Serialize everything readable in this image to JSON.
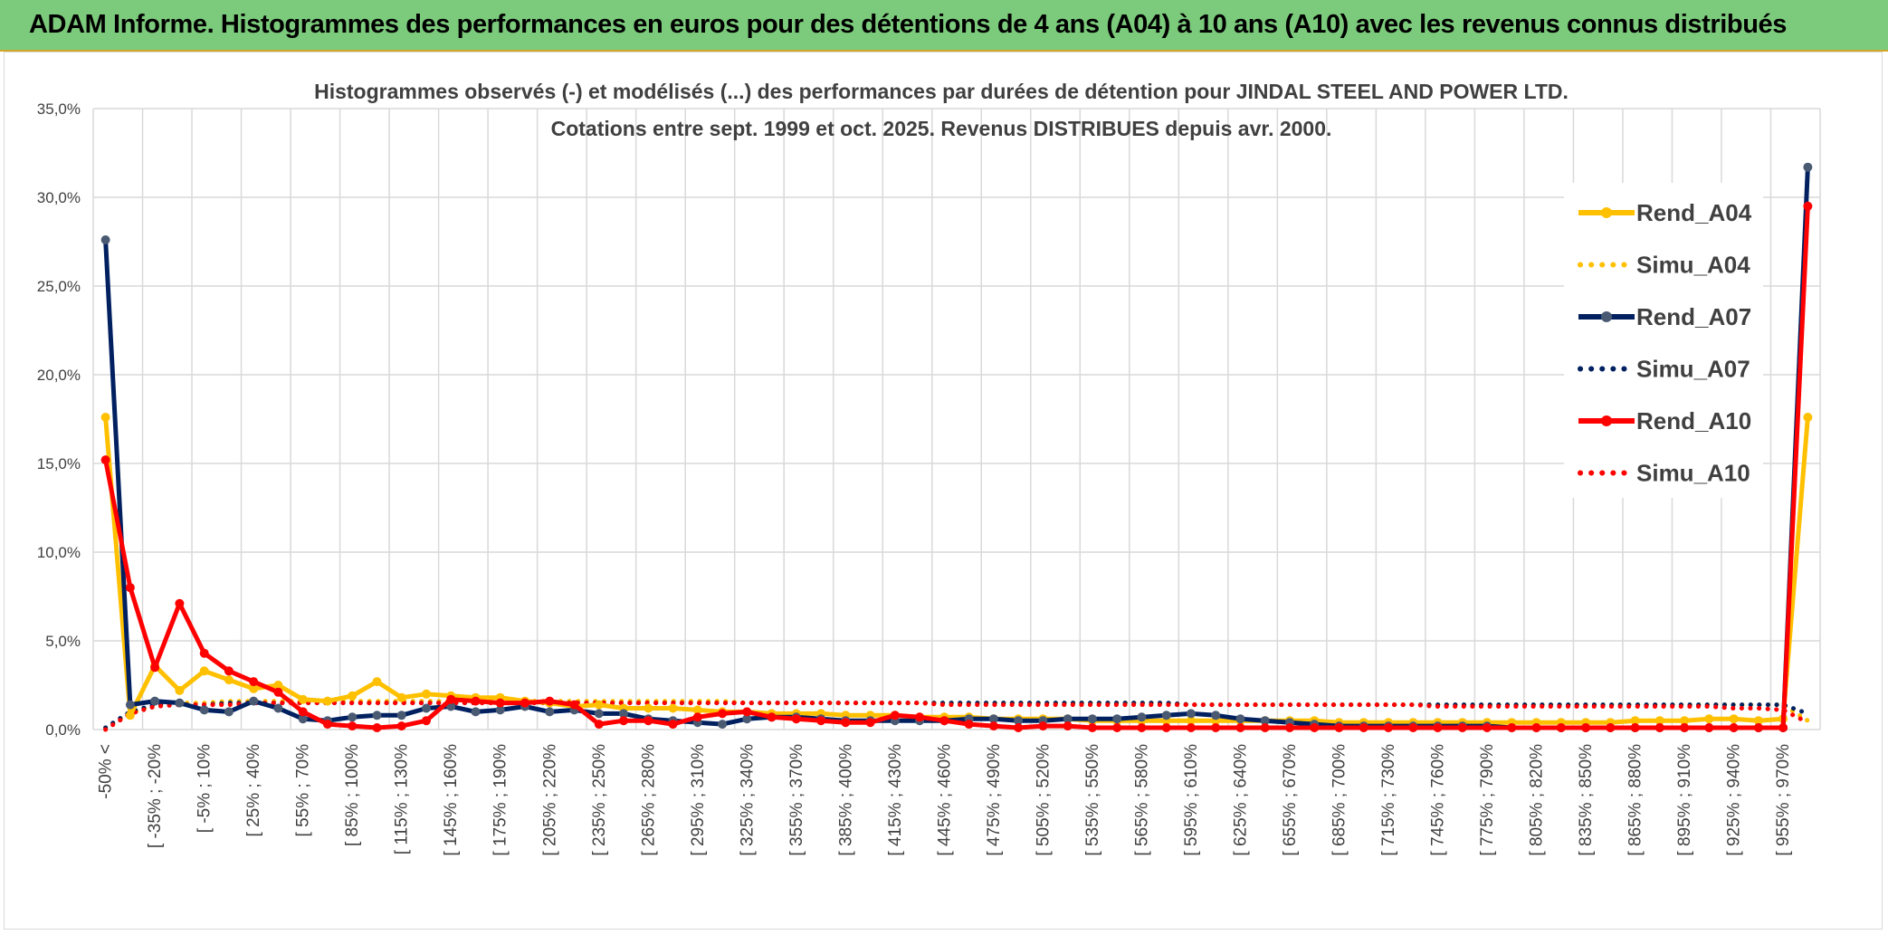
{
  "banner": {
    "title": "ADAM Informe. Histogrammes des performances en euros pour des détentions de 4 ans (A04) à 10 ans (A10) avec les revenus connus distribués"
  },
  "colors": {
    "banner_bg": "#7ccb7c",
    "A04": "#ffc000",
    "A07": "#002060",
    "A07_marker": "#4a5a73",
    "A10": "#ff0000"
  },
  "chart_data": {
    "type": "line",
    "title_lines": [
      "Histogrammes observés (-) et modélisés (...) des performances par durées de détention pour JINDAL STEEL AND POWER LTD.",
      "Cotations entre sept. 1999 et oct. 2025. Revenus DISTRIBUES depuis avr. 2000."
    ],
    "xlabel": "",
    "ylabel": "",
    "ylim": [
      0,
      35
    ],
    "yticks": [
      "0,0%",
      "5,0%",
      "10,0%",
      "15,0%",
      "20,0%",
      "25,0%",
      "30,0%",
      "35,0%"
    ],
    "x_tick_labels": [
      "-50% <",
      "[ -35% ; -20%",
      "[ -5% ; 10%",
      "[ 25% ; 40%",
      "[ 55% ; 70%",
      "[ 85% ; 100%",
      "[ 115% ; 130%",
      "[ 145% ; 160%",
      "[ 175% ; 190%",
      "[ 205% ; 220%",
      "[ 235% ; 250%",
      "[ 265% ; 280%",
      "[ 295% ; 310%",
      "[ 325% ; 340%",
      "[ 355% ; 370%",
      "[ 385% ; 400%",
      "[ 415% ; 430%",
      "[ 445% ; 460%",
      "[ 475% ; 490%",
      "[ 505% ; 520%",
      "[ 535% ; 550%",
      "[ 565% ; 580%",
      "[ 595% ; 610%",
      "[ 625% ; 640%",
      "[ 655% ; 670%",
      "[ 685% ; 700%",
      "[ 715% ; 730%",
      "[ 745% ; 760%",
      "[ 775% ; 790%",
      "[ 805% ; 820%",
      "[ 835% ; 850%",
      "[ 865% ; 880%",
      "[ 895% ; 910%",
      "[ 925% ; 940%",
      "[ 955% ; 970%"
    ],
    "n_points": 70,
    "series": [
      {
        "name": "Rend_A04",
        "style": "solid",
        "values": [
          17.6,
          0.8,
          3.6,
          2.2,
          3.3,
          2.8,
          2.3,
          2.5,
          1.7,
          1.6,
          1.9,
          2.7,
          1.8,
          2.0,
          1.9,
          1.8,
          1.8,
          1.6,
          1.5,
          1.3,
          1.4,
          1.2,
          1.2,
          1.2,
          1.1,
          1.0,
          1.0,
          0.9,
          0.9,
          0.9,
          0.8,
          0.8,
          0.8,
          0.7,
          0.7,
          0.7,
          0.6,
          0.6,
          0.6,
          0.6,
          0.5,
          0.5,
          0.5,
          0.5,
          0.5,
          0.5,
          0.5,
          0.5,
          0.5,
          0.5,
          0.4,
          0.4,
          0.4,
          0.4,
          0.4,
          0.4,
          0.4,
          0.4,
          0.4,
          0.4,
          0.4,
          0.4,
          0.5,
          0.5,
          0.5,
          0.6,
          0.6,
          0.5,
          0.6,
          17.6
        ]
      },
      {
        "name": "Simu_A04",
        "style": "dotted",
        "values": [
          0.1,
          0.9,
          1.4,
          1.5,
          1.5,
          1.6,
          1.6,
          1.6,
          1.6,
          1.6,
          1.6,
          1.6,
          1.6,
          1.6,
          1.6,
          1.6,
          1.6,
          1.6,
          1.6,
          1.6,
          1.6,
          1.6,
          1.6,
          1.6,
          1.6,
          1.6,
          1.5,
          1.5,
          1.5,
          1.5,
          1.5,
          1.5,
          1.5,
          1.5,
          1.5,
          1.5,
          1.5,
          1.5,
          1.5,
          1.5,
          1.5,
          1.5,
          1.5,
          1.5,
          1.4,
          1.4,
          1.4,
          1.4,
          1.4,
          1.4,
          1.4,
          1.4,
          1.4,
          1.4,
          1.4,
          1.4,
          1.4,
          1.4,
          1.4,
          1.4,
          1.4,
          1.4,
          1.4,
          1.4,
          1.4,
          1.4,
          1.4,
          1.4,
          1.4,
          0.5
        ]
      },
      {
        "name": "Rend_A07",
        "style": "solid",
        "values": [
          27.6,
          1.4,
          1.6,
          1.5,
          1.1,
          1.0,
          1.6,
          1.2,
          0.6,
          0.5,
          0.7,
          0.8,
          0.8,
          1.2,
          1.3,
          1.0,
          1.1,
          1.3,
          1.0,
          1.1,
          0.9,
          0.9,
          0.6,
          0.5,
          0.4,
          0.3,
          0.6,
          0.7,
          0.7,
          0.6,
          0.5,
          0.5,
          0.5,
          0.5,
          0.5,
          0.6,
          0.6,
          0.5,
          0.5,
          0.6,
          0.6,
          0.6,
          0.7,
          0.8,
          0.9,
          0.8,
          0.6,
          0.5,
          0.4,
          0.3,
          0.2,
          0.2,
          0.2,
          0.2,
          0.2,
          0.2,
          0.2,
          0.1,
          0.1,
          0.1,
          0.1,
          0.1,
          0.1,
          0.1,
          0.1,
          0.1,
          0.1,
          0.1,
          0.1,
          31.7
        ]
      },
      {
        "name": "Simu_A07",
        "style": "dotted",
        "values": [
          0.1,
          1.0,
          1.4,
          1.4,
          1.4,
          1.5,
          1.5,
          1.5,
          1.5,
          1.5,
          1.5,
          1.5,
          1.5,
          1.5,
          1.5,
          1.5,
          1.5,
          1.5,
          1.5,
          1.5,
          1.5,
          1.5,
          1.5,
          1.5,
          1.5,
          1.5,
          1.5,
          1.5,
          1.5,
          1.5,
          1.5,
          1.5,
          1.5,
          1.5,
          1.5,
          1.5,
          1.5,
          1.5,
          1.5,
          1.5,
          1.5,
          1.5,
          1.5,
          1.5,
          1.4,
          1.4,
          1.4,
          1.4,
          1.4,
          1.4,
          1.4,
          1.4,
          1.4,
          1.4,
          1.4,
          1.4,
          1.4,
          1.4,
          1.4,
          1.4,
          1.4,
          1.4,
          1.4,
          1.4,
          1.4,
          1.4,
          1.4,
          1.4,
          1.4,
          0.9
        ]
      },
      {
        "name": "Rend_A10",
        "style": "solid",
        "values": [
          15.2,
          8.0,
          3.5,
          7.1,
          4.3,
          3.3,
          2.7,
          2.1,
          1.0,
          0.3,
          0.2,
          0.1,
          0.2,
          0.5,
          1.7,
          1.6,
          1.5,
          1.5,
          1.6,
          1.4,
          0.3,
          0.5,
          0.5,
          0.3,
          0.7,
          0.9,
          1.0,
          0.7,
          0.6,
          0.5,
          0.4,
          0.4,
          0.8,
          0.7,
          0.5,
          0.3,
          0.2,
          0.1,
          0.2,
          0.2,
          0.1,
          0.1,
          0.1,
          0.1,
          0.1,
          0.1,
          0.1,
          0.1,
          0.1,
          0.1,
          0.1,
          0.1,
          0.1,
          0.1,
          0.1,
          0.1,
          0.1,
          0.1,
          0.1,
          0.1,
          0.1,
          0.1,
          0.1,
          0.1,
          0.1,
          0.1,
          0.1,
          0.1,
          0.1,
          29.5
        ]
      },
      {
        "name": "Simu_A10",
        "style": "dotted",
        "values": [
          0.0,
          0.9,
          1.3,
          1.4,
          1.4,
          1.4,
          1.5,
          1.5,
          1.5,
          1.5,
          1.5,
          1.5,
          1.5,
          1.5,
          1.5,
          1.5,
          1.5,
          1.5,
          1.5,
          1.5,
          1.5,
          1.5,
          1.5,
          1.5,
          1.5,
          1.5,
          1.5,
          1.5,
          1.5,
          1.5,
          1.5,
          1.5,
          1.5,
          1.5,
          1.4,
          1.4,
          1.4,
          1.4,
          1.4,
          1.4,
          1.4,
          1.4,
          1.4,
          1.4,
          1.4,
          1.4,
          1.4,
          1.4,
          1.4,
          1.4,
          1.4,
          1.4,
          1.4,
          1.4,
          1.3,
          1.3,
          1.3,
          1.3,
          1.3,
          1.3,
          1.3,
          1.3,
          1.3,
          1.3,
          1.3,
          1.3,
          1.2,
          1.2,
          1.1,
          0.4
        ]
      }
    ],
    "legend_position": "right",
    "grid": true
  }
}
